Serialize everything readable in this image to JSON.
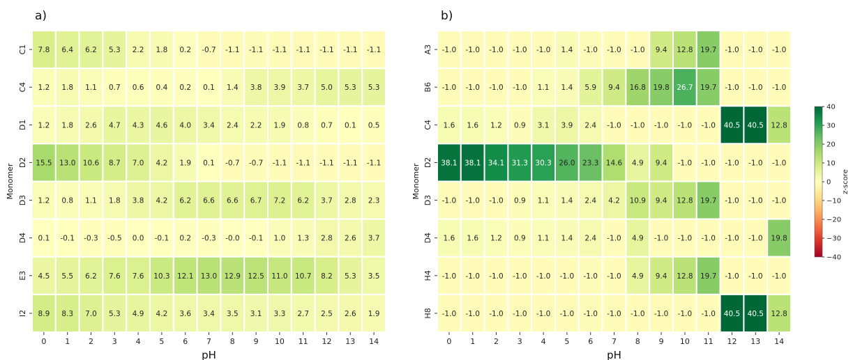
{
  "chart_data": [
    {
      "type": "heatmap",
      "panel_label": "a)",
      "xlabel": "pH",
      "ylabel": "Monomer",
      "x": [
        "0",
        "1",
        "2",
        "3",
        "4",
        "5",
        "6",
        "7",
        "8",
        "9",
        "10",
        "11",
        "12",
        "13",
        "14"
      ],
      "y": [
        "C1",
        "C4",
        "D1",
        "D2",
        "D3",
        "D4",
        "E3",
        "I2"
      ],
      "values": [
        [
          7.8,
          6.4,
          6.2,
          5.3,
          2.2,
          1.8,
          0.2,
          -0.7,
          -1.1,
          -1.1,
          -1.1,
          -1.1,
          -1.1,
          -1.1,
          -1.1
        ],
        [
          1.2,
          1.8,
          1.1,
          0.7,
          0.6,
          0.4,
          0.2,
          0.1,
          1.4,
          3.8,
          3.9,
          3.7,
          5.0,
          5.3,
          5.3
        ],
        [
          1.2,
          1.8,
          2.6,
          4.7,
          4.3,
          4.6,
          4.0,
          3.4,
          2.4,
          2.2,
          1.9,
          0.8,
          0.7,
          0.1,
          0.5
        ],
        [
          15.5,
          13.0,
          10.6,
          8.7,
          7.0,
          4.2,
          1.9,
          0.1,
          -0.7,
          -0.7,
          -1.1,
          -1.1,
          -1.1,
          -1.1,
          -1.1
        ],
        [
          1.2,
          0.8,
          1.1,
          1.8,
          3.8,
          4.2,
          6.2,
          6.6,
          6.6,
          6.7,
          7.2,
          6.2,
          3.7,
          2.8,
          2.3
        ],
        [
          0.1,
          -0.1,
          -0.3,
          -0.5,
          0.0,
          -0.1,
          0.2,
          -0.3,
          -0.0,
          -0.1,
          1.0,
          1.3,
          2.8,
          2.6,
          3.7
        ],
        [
          4.5,
          5.5,
          6.2,
          7.6,
          7.6,
          10.3,
          12.1,
          13.0,
          12.9,
          12.5,
          11.0,
          10.7,
          8.2,
          5.3,
          3.5
        ],
        [
          8.9,
          8.3,
          7.0,
          5.3,
          4.9,
          4.2,
          3.6,
          3.4,
          3.5,
          3.1,
          3.3,
          2.7,
          2.5,
          2.6,
          1.9
        ]
      ]
    },
    {
      "type": "heatmap",
      "panel_label": "b)",
      "xlabel": "pH",
      "ylabel": "Monomer",
      "x": [
        "0",
        "1",
        "2",
        "3",
        "4",
        "5",
        "6",
        "7",
        "8",
        "9",
        "10",
        "11",
        "12",
        "13",
        "14"
      ],
      "y": [
        "A3",
        "B6",
        "C4",
        "D2",
        "D3",
        "D4",
        "H4",
        "H8"
      ],
      "values": [
        [
          -1.0,
          -1.0,
          -1.0,
          -1.0,
          -1.0,
          1.4,
          -1.0,
          -1.0,
          -1.0,
          9.4,
          12.8,
          19.7,
          -1.0,
          -1.0,
          -1.0
        ],
        [
          -1.0,
          -1.0,
          -1.0,
          -1.0,
          1.1,
          1.4,
          5.9,
          9.4,
          16.8,
          19.8,
          26.7,
          19.7,
          -1.0,
          -1.0,
          -1.0
        ],
        [
          1.6,
          1.6,
          1.2,
          0.9,
          3.1,
          3.9,
          2.4,
          -1.0,
          -1.0,
          -1.0,
          -1.0,
          -1.0,
          40.5,
          40.5,
          12.8
        ],
        [
          38.1,
          38.1,
          34.1,
          31.3,
          30.3,
          26.0,
          23.3,
          14.6,
          4.9,
          9.4,
          -1.0,
          -1.0,
          -1.0,
          -1.0,
          -1.0
        ],
        [
          -1.0,
          -1.0,
          -1.0,
          0.9,
          1.1,
          1.4,
          2.4,
          4.2,
          10.9,
          9.4,
          12.8,
          19.7,
          -1.0,
          -1.0,
          -1.0
        ],
        [
          1.6,
          1.6,
          1.2,
          0.9,
          1.1,
          1.4,
          2.4,
          -1.0,
          4.9,
          -1.0,
          -1.0,
          -1.0,
          -1.0,
          -1.0,
          19.8
        ],
        [
          -1.0,
          -1.0,
          -1.0,
          -1.0,
          -1.0,
          -1.0,
          -1.0,
          -1.0,
          4.9,
          9.4,
          12.8,
          19.7,
          -1.0,
          -1.0,
          -1.0
        ],
        [
          -1.0,
          -1.0,
          -1.0,
          -1.0,
          -1.0,
          -1.0,
          -1.0,
          -1.0,
          -1.0,
          -1.0,
          -1.0,
          -1.0,
          40.5,
          40.5,
          12.8
        ]
      ]
    }
  ],
  "colorbar": {
    "label": "z-score",
    "range": [
      -40,
      40
    ],
    "ticks": [
      "40",
      "30",
      "20",
      "10",
      "0",
      "−10",
      "−20",
      "−30",
      "−40"
    ],
    "colormap": "RdYlGn",
    "colors": [
      "#a50026",
      "#d73027",
      "#f46d43",
      "#fdae61",
      "#fee08b",
      "#ffffbf",
      "#d9ef8b",
      "#a6d96a",
      "#66bd63",
      "#1a9850",
      "#006837"
    ]
  }
}
